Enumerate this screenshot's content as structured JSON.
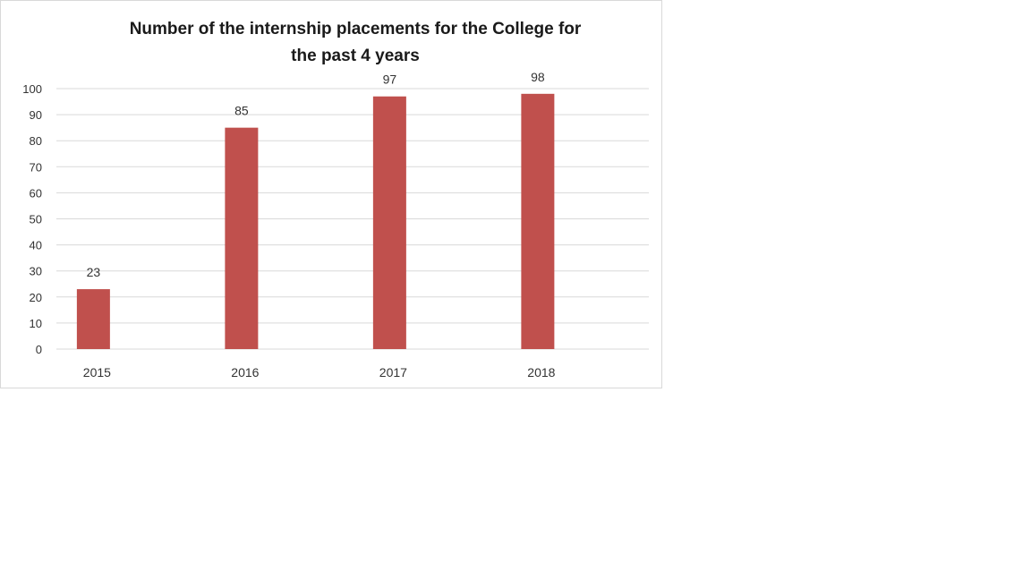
{
  "chart_data": {
    "type": "bar",
    "title_lines": [
      "Number of the internship placements for the College for",
      "the past 4 years"
    ],
    "categories": [
      "2015",
      "2016",
      "2017",
      "2018"
    ],
    "values": [
      23,
      85,
      97,
      98
    ],
    "data_labels": [
      "23",
      "85",
      "97",
      "98"
    ],
    "yticks": [
      "0",
      "10",
      "20",
      "30",
      "40",
      "50",
      "60",
      "70",
      "80",
      "90",
      "100"
    ],
    "ylim": [
      0,
      100
    ],
    "xlabel": "",
    "ylabel": "",
    "grid": true,
    "legend": "none",
    "bar_color": "#c0504d",
    "grid_color": "#d9d9d9"
  }
}
